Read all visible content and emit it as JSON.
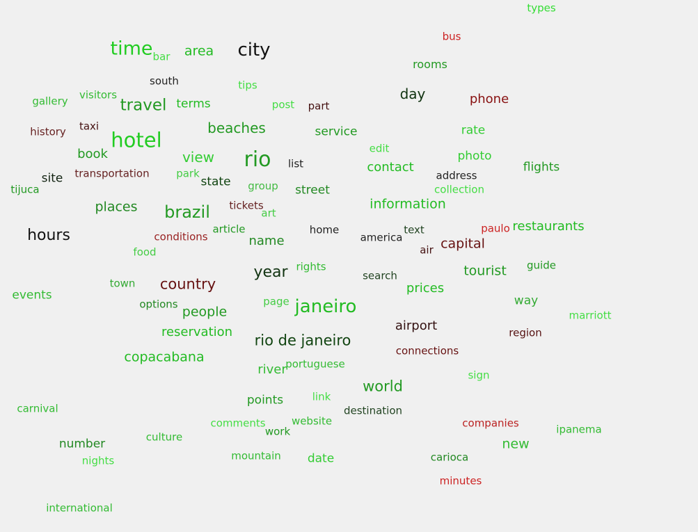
{
  "words": [
    {
      "text": "types",
      "color": "#33dd33"
    },
    {
      "text": "bus",
      "color": "#cc2222"
    },
    {
      "text": "time",
      "color": "#22cc22"
    },
    {
      "text": "bar",
      "color": "#44dd44"
    },
    {
      "text": "area",
      "color": "#22bb22"
    },
    {
      "text": "city",
      "color": "#111111"
    },
    {
      "text": "rooms",
      "color": "#229922"
    },
    {
      "text": "south",
      "color": "#222222"
    },
    {
      "text": "tips",
      "color": "#44dd44"
    },
    {
      "text": "visitors",
      "color": "#33bb33"
    },
    {
      "text": "gallery",
      "color": "#33bb33"
    },
    {
      "text": "travel",
      "color": "#229922"
    },
    {
      "text": "terms",
      "color": "#22bb22"
    },
    {
      "text": "post",
      "color": "#44dd44"
    },
    {
      "text": "part",
      "color": "#441111"
    },
    {
      "text": "day",
      "color": "#113311"
    },
    {
      "text": "phone",
      "color": "#881111"
    },
    {
      "text": "history",
      "color": "#662222"
    },
    {
      "text": "taxi",
      "color": "#441111"
    },
    {
      "text": "hotel",
      "color": "#22cc22"
    },
    {
      "text": "beaches",
      "color": "#229922"
    },
    {
      "text": "service",
      "color": "#229922"
    },
    {
      "text": "rate",
      "color": "#33cc33"
    },
    {
      "text": "edit",
      "color": "#44dd44"
    },
    {
      "text": "book",
      "color": "#229922"
    },
    {
      "text": "view",
      "color": "#33cc33"
    },
    {
      "text": "rio",
      "color": "#229922"
    },
    {
      "text": "photo",
      "color": "#33cc33"
    },
    {
      "text": "list",
      "color": "#222222"
    },
    {
      "text": "contact",
      "color": "#22bb22"
    },
    {
      "text": "flights",
      "color": "#229922"
    },
    {
      "text": "transportation",
      "color": "#662222"
    },
    {
      "text": "park",
      "color": "#44cc44"
    },
    {
      "text": "address",
      "color": "#222222"
    },
    {
      "text": "site",
      "color": "#112211"
    },
    {
      "text": "state",
      "color": "#114411"
    },
    {
      "text": "group",
      "color": "#44bb44"
    },
    {
      "text": "street",
      "color": "#228822"
    },
    {
      "text": "collection",
      "color": "#44dd44"
    },
    {
      "text": "tijuca",
      "color": "#229922"
    },
    {
      "text": "places",
      "color": "#228822"
    },
    {
      "text": "brazil",
      "color": "#229922"
    },
    {
      "text": "tickets",
      "color": "#662222"
    },
    {
      "text": "art",
      "color": "#44cc44"
    },
    {
      "text": "information",
      "color": "#22bb22"
    },
    {
      "text": "article",
      "color": "#229922"
    },
    {
      "text": "restaurants",
      "color": "#22bb22"
    },
    {
      "text": "paulo",
      "color": "#cc2222"
    },
    {
      "text": "hours",
      "color": "#111111"
    },
    {
      "text": "conditions",
      "color": "#992222"
    },
    {
      "text": "name",
      "color": "#228822"
    },
    {
      "text": "home",
      "color": "#222222"
    },
    {
      "text": "america",
      "color": "#222222"
    },
    {
      "text": "text",
      "color": "#224422"
    },
    {
      "text": "capital",
      "color": "#661111"
    },
    {
      "text": "air",
      "color": "#441111"
    },
    {
      "text": "food",
      "color": "#44cc44"
    },
    {
      "text": "rights",
      "color": "#33bb33"
    },
    {
      "text": "guide",
      "color": "#229922"
    },
    {
      "text": "year",
      "color": "#113311"
    },
    {
      "text": "tourist",
      "color": "#229922"
    },
    {
      "text": "search",
      "color": "#224422"
    },
    {
      "text": "country",
      "color": "#661111"
    },
    {
      "text": "town",
      "color": "#33aa33"
    },
    {
      "text": "prices",
      "color": "#22bb22"
    },
    {
      "text": "events",
      "color": "#33bb33"
    },
    {
      "text": "options",
      "color": "#228822"
    },
    {
      "text": "page",
      "color": "#44cc44"
    },
    {
      "text": "way",
      "color": "#33aa33"
    },
    {
      "text": "janeiro",
      "color": "#22bb22"
    },
    {
      "text": "people",
      "color": "#229922"
    },
    {
      "text": "marriott",
      "color": "#44dd44"
    },
    {
      "text": "airport",
      "color": "#331111"
    },
    {
      "text": "region",
      "color": "#551111"
    },
    {
      "text": "reservation",
      "color": "#22bb22"
    },
    {
      "text": "rio de janeiro",
      "color": "#114411"
    },
    {
      "text": "connections",
      "color": "#661111"
    },
    {
      "text": "copacabana",
      "color": "#22bb22"
    },
    {
      "text": "river",
      "color": "#33bb33"
    },
    {
      "text": "portuguese",
      "color": "#33bb33"
    },
    {
      "text": "sign",
      "color": "#44dd44"
    },
    {
      "text": "world",
      "color": "#229922"
    },
    {
      "text": "link",
      "color": "#44dd44"
    },
    {
      "text": "points",
      "color": "#229922"
    },
    {
      "text": "carnival",
      "color": "#33bb33"
    },
    {
      "text": "destination",
      "color": "#224422"
    },
    {
      "text": "comments",
      "color": "#44dd44"
    },
    {
      "text": "website",
      "color": "#33bb33"
    },
    {
      "text": "work",
      "color": "#229922"
    },
    {
      "text": "companies",
      "color": "#bb2222"
    },
    {
      "text": "ipanema",
      "color": "#33bb33"
    },
    {
      "text": "culture",
      "color": "#33bb33"
    },
    {
      "text": "new",
      "color": "#33bb33"
    },
    {
      "text": "number",
      "color": "#228822"
    },
    {
      "text": "mountain",
      "color": "#33bb33"
    },
    {
      "text": "date",
      "color": "#33cc33"
    },
    {
      "text": "carioca",
      "color": "#228822"
    },
    {
      "text": "nights",
      "color": "#44dd44"
    },
    {
      "text": "minutes",
      "color": "#cc2222"
    },
    {
      "text": "international",
      "color": "#33bb33"
    }
  ]
}
